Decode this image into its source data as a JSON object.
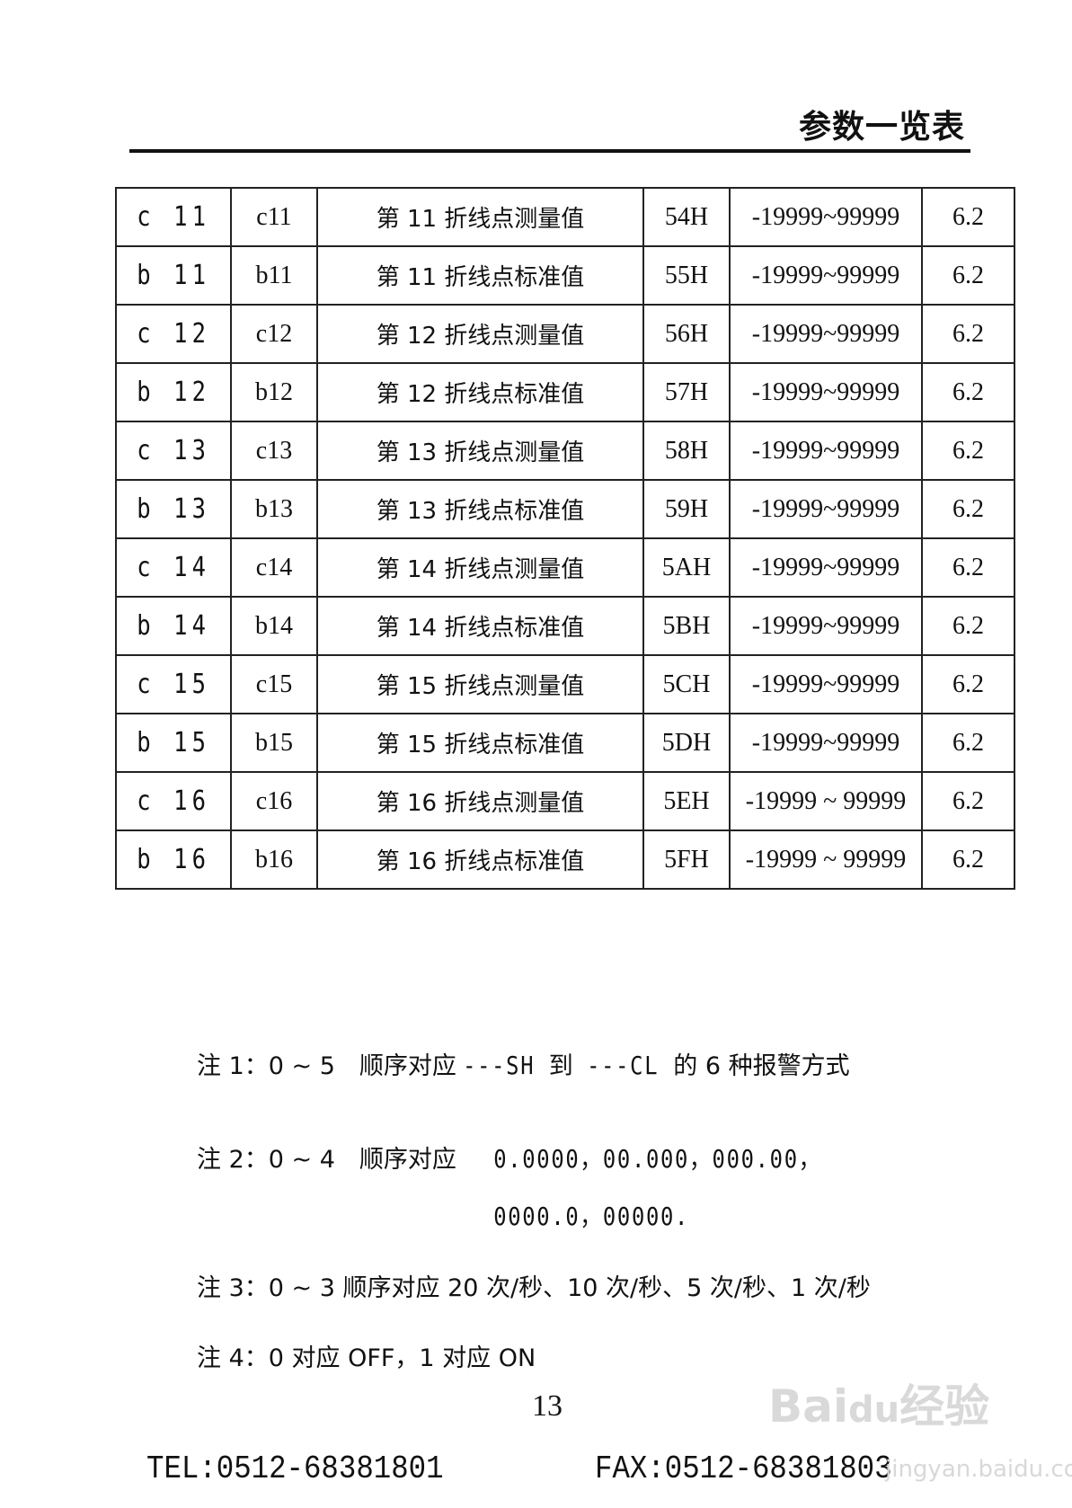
{
  "header": {
    "title": "参数一览表"
  },
  "table": {
    "rows": [
      {
        "display": "c 11",
        "code": "c11",
        "name": "第 11 折线点测量值",
        "addr": "54H",
        "range": "-19999~99999",
        "section": "6.2"
      },
      {
        "display": "b 11",
        "code": "b11",
        "name": "第 11 折线点标准值",
        "addr": "55H",
        "range": "-19999~99999",
        "section": "6.2"
      },
      {
        "display": "c 12",
        "code": "c12",
        "name": "第 12 折线点测量值",
        "addr": "56H",
        "range": "-19999~99999",
        "section": "6.2"
      },
      {
        "display": "b 12",
        "code": "b12",
        "name": "第 12 折线点标准值",
        "addr": "57H",
        "range": "-19999~99999",
        "section": "6.2"
      },
      {
        "display": "c 13",
        "code": "c13",
        "name": "第 13 折线点测量值",
        "addr": "58H",
        "range": "-19999~99999",
        "section": "6.2"
      },
      {
        "display": "b 13",
        "code": "b13",
        "name": "第 13 折线点标准值",
        "addr": "59H",
        "range": "-19999~99999",
        "section": "6.2"
      },
      {
        "display": "c 14",
        "code": "c14",
        "name": "第 14 折线点测量值",
        "addr": "5AH",
        "range": "-19999~99999",
        "section": "6.2"
      },
      {
        "display": "b 14",
        "code": "b14",
        "name": "第 14 折线点标准值",
        "addr": "5BH",
        "range": "-19999~99999",
        "section": "6.2"
      },
      {
        "display": "c 15",
        "code": "c15",
        "name": "第 15 折线点测量值",
        "addr": "5CH",
        "range": "-19999~99999",
        "section": "6.2"
      },
      {
        "display": "b 15",
        "code": "b15",
        "name": "第 15 折线点标准值",
        "addr": "5DH",
        "range": "-19999~99999",
        "section": "6.2"
      },
      {
        "display": "c 16",
        "code": "c16",
        "name": "第 16 折线点测量值",
        "addr": "5EH",
        "range": "-19999 ~ 99999",
        "section": "6.2"
      },
      {
        "display": "b 16",
        "code": "b16",
        "name": "第 16 折线点标准值",
        "addr": "5FH",
        "range": "-19999 ~ 99999",
        "section": "6.2"
      }
    ]
  },
  "notes": {
    "n1": {
      "prefix": "注 1：0 ~ 5　顺序对应",
      "seg1": "---SH",
      "mid": " 到 ",
      "seg2": "---CL",
      "suffix": " 的 6 种报警方式"
    },
    "n2": {
      "prefix": "注 2：0 ~ 4　顺序对应 ",
      "seg": "0.0000，00.000，000.00，",
      "seg_line2": "0000.0，00000."
    },
    "n3": "注 3：0 ~ 3  顺序对应 20 次/秒、10 次/秒、5 次/秒、1 次/秒",
    "n4": "注 4：0 对应 OFF，1 对应 ON"
  },
  "footer": {
    "page_number": "13",
    "tel": "TEL:0512-68381801",
    "fax": "FAX:0512-68381803"
  },
  "watermark": {
    "logo": "Baidu经验",
    "url": "jingyan.baidu.com"
  }
}
